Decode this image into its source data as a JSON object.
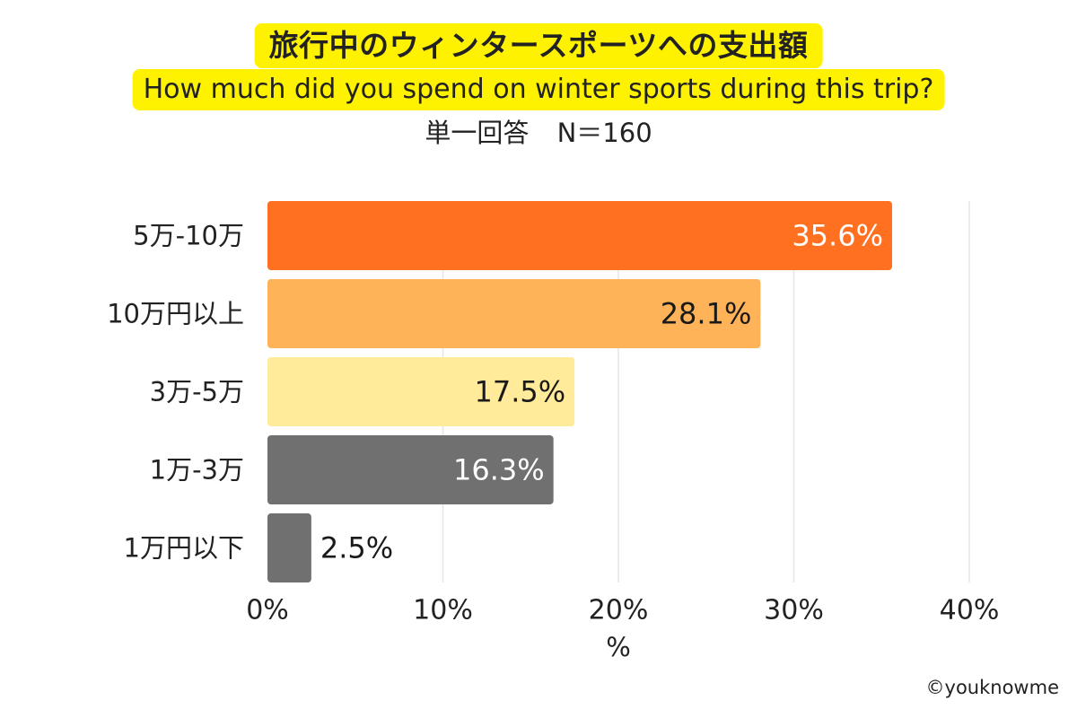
{
  "colors": {
    "title_bg": "#FFF200",
    "grid": "#E6E6E6",
    "label_light": "#FFFFFF",
    "label_dark": "#1A1A1A"
  },
  "header": {
    "title_jp": "旅行中のウィンタースポーツへの支出額",
    "title_en": "How much did you spend on winter sports during this trip?",
    "subtitle_type": "単一回答",
    "subtitle_n": "N＝160"
  },
  "chart_data": {
    "type": "bar",
    "orientation": "horizontal",
    "categories": [
      "5万-10万",
      "10万円以上",
      "3万-5万",
      "1万-3万",
      "1万円以下"
    ],
    "values": [
      35.6,
      28.1,
      17.5,
      16.3,
      2.5
    ],
    "value_labels": [
      "35.6%",
      "28.1%",
      "17.5%",
      "16.3%",
      "2.5%"
    ],
    "bar_colors": [
      "#FF7120",
      "#FFB358",
      "#FFEB99",
      "#707070",
      "#707070"
    ],
    "label_colors": [
      "#FFFFFF",
      "#1A1A1A",
      "#1A1A1A",
      "#FFFFFF",
      "#1A1A1A"
    ],
    "label_inside": [
      true,
      true,
      true,
      true,
      false
    ],
    "xlim": [
      0,
      40
    ],
    "xticks": [
      0,
      10,
      20,
      30,
      40
    ],
    "xtick_labels": [
      "0%",
      "10%",
      "20%",
      "30%",
      "40%"
    ],
    "xlabel": "%",
    "title": "旅行中のウィンタースポーツへの支出額",
    "subtitle": "How much did you spend on winter sports during this trip?",
    "grid": true
  },
  "footer": {
    "credit": "©youknowme"
  }
}
